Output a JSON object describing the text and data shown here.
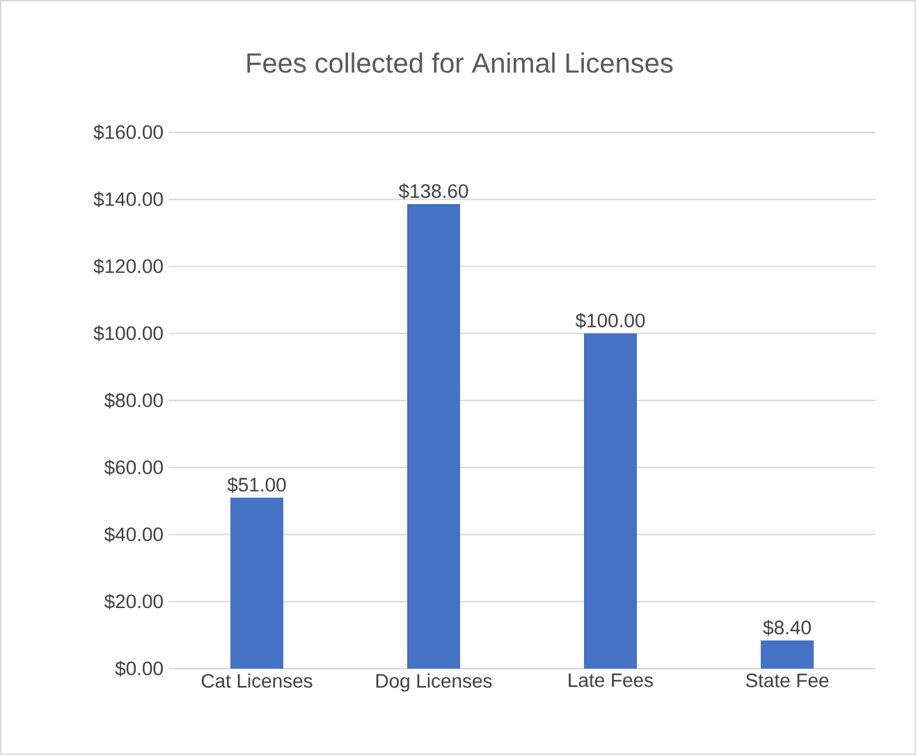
{
  "chart_data": {
    "type": "bar",
    "title": "Fees collected for Animal Licenses",
    "categories": [
      "Cat Licenses",
      "Dog Licenses",
      "Late Fees",
      "State Fee"
    ],
    "values": [
      51,
      138.6,
      100,
      8.4
    ],
    "value_labels": [
      "$51.00",
      "$138.60",
      "$100.00",
      "$8.40"
    ],
    "color": "#4472c4",
    "ylim": [
      0,
      160
    ],
    "yticks": [
      {
        "value": 0,
        "label": "$0.00"
      },
      {
        "value": 20,
        "label": "$20.00"
      },
      {
        "value": 40,
        "label": "$40.00"
      },
      {
        "value": 60,
        "label": "$60.00"
      },
      {
        "value": 80,
        "label": "$80.00"
      },
      {
        "value": 100,
        "label": "$100.00"
      },
      {
        "value": 120,
        "label": "$120.00"
      },
      {
        "value": 140,
        "label": "$140.00"
      },
      {
        "value": 160,
        "label": "$160.00"
      }
    ],
    "grid": "y"
  }
}
